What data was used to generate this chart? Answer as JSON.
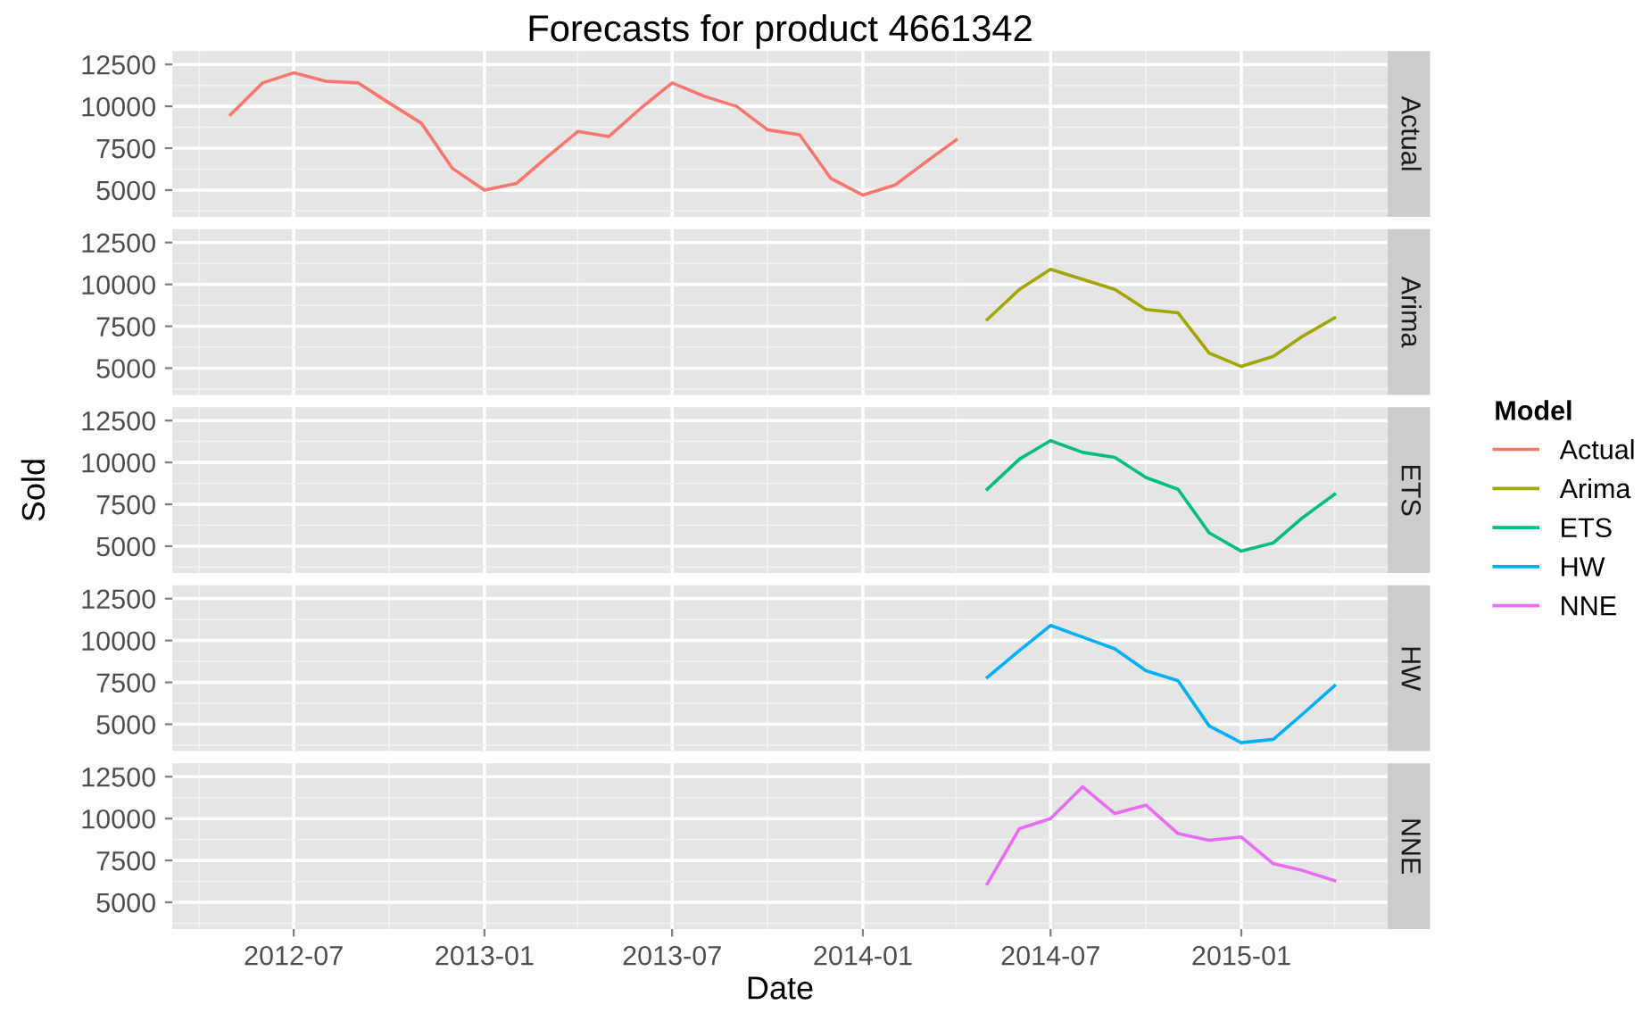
{
  "chart_data": [
    {
      "type": "line",
      "title": "Forecasts for product 4661342",
      "legend": "right",
      "legend_title": "Model",
      "grid": true,
      "tick_labels": "y",
      "xlim": [
        "2012-03-06",
        "2015-05-22"
      ],
      "ylim": [
        3400,
        13300
      ],
      "yticks": [
        {
          "value": 3750,
          "label": null
        },
        5000,
        {
          "value": 6250,
          "label": null
        },
        7500,
        {
          "value": 8750,
          "label": null
        },
        10000,
        {
          "value": 11250,
          "label": null
        },
        12500
      ],
      "x": [
        "2012-05",
        "2012-06",
        "2012-07",
        "2012-08",
        "2012-09",
        "2012-10",
        "2012-11",
        "2012-12",
        "2013-01",
        "2013-02",
        "2013-03",
        "2013-04",
        "2013-05",
        "2013-06",
        "2013-07",
        "2013-08",
        "2013-09",
        "2013-10",
        "2013-11",
        "2013-12",
        "2014-01",
        "2014-02",
        "2014-03",
        "2014-04"
      ],
      "series": [
        {
          "name": "Actual",
          "color": "#f8766d",
          "values": [
            9500,
            11400,
            12000,
            11500,
            11400,
            10200,
            9000,
            6300,
            5000,
            5400,
            6900,
            8500,
            8200,
            9900,
            11400,
            10600,
            10000,
            8600,
            8300,
            5700,
            4700,
            5300,
            6600,
            8000
          ]
        }
      ]
    },
    {
      "type": "line",
      "grid": true,
      "tick_labels": "y",
      "xlim": [
        "2012-03-06",
        "2015-05-22"
      ],
      "ylim": [
        3400,
        13300
      ],
      "yticks": [
        {
          "value": 3750,
          "label": null
        },
        5000,
        {
          "value": 6250,
          "label": null
        },
        7500,
        {
          "value": 8750,
          "label": null
        },
        10000,
        {
          "value": 11250,
          "label": null
        },
        12500
      ],
      "x": [
        "2014-05",
        "2014-06",
        "2014-07",
        "2014-08",
        "2014-09",
        "2014-10",
        "2014-11",
        "2014-12",
        "2015-01",
        "2015-02",
        "2015-03",
        "2015-04"
      ],
      "series": [
        {
          "name": "Arima",
          "color": "#a3a500",
          "values": [
            7900,
            9700,
            10900,
            10300,
            9700,
            8500,
            8300,
            5900,
            5100,
            5700,
            6900,
            8000
          ]
        }
      ]
    },
    {
      "type": "line",
      "ylabel": "Sold",
      "grid": true,
      "tick_labels": "y",
      "xlim": [
        "2012-03-06",
        "2015-05-22"
      ],
      "ylim": [
        3400,
        13300
      ],
      "yticks": [
        {
          "value": 3750,
          "label": null
        },
        5000,
        {
          "value": 6250,
          "label": null
        },
        7500,
        {
          "value": 8750,
          "label": null
        },
        10000,
        {
          "value": 11250,
          "label": null
        },
        12500
      ],
      "x": [
        "2014-05",
        "2014-06",
        "2014-07",
        "2014-08",
        "2014-09",
        "2014-10",
        "2014-11",
        "2014-12",
        "2015-01",
        "2015-02",
        "2015-03",
        "2015-04"
      ],
      "series": [
        {
          "name": "ETS",
          "color": "#00bf7d",
          "values": [
            8400,
            10200,
            11300,
            10600,
            10300,
            9100,
            8400,
            5800,
            4700,
            5200,
            6700,
            8100
          ]
        }
      ]
    },
    {
      "type": "line",
      "grid": true,
      "tick_labels": "y",
      "xlim": [
        "2012-03-06",
        "2015-05-22"
      ],
      "ylim": [
        3400,
        13300
      ],
      "yticks": [
        {
          "value": 3750,
          "label": null
        },
        5000,
        {
          "value": 6250,
          "label": null
        },
        7500,
        {
          "value": 8750,
          "label": null
        },
        10000,
        {
          "value": 11250,
          "label": null
        },
        12500
      ],
      "x": [
        "2014-05",
        "2014-06",
        "2014-07",
        "2014-08",
        "2014-09",
        "2014-10",
        "2014-11",
        "2014-12",
        "2015-01",
        "2015-02",
        "2015-03",
        "2015-04"
      ],
      "series": [
        {
          "name": "HW",
          "color": "#00b0f6",
          "values": [
            7800,
            9400,
            10900,
            10200,
            9500,
            8200,
            7600,
            4900,
            3900,
            4100,
            5600,
            7300
          ]
        }
      ]
    },
    {
      "type": "line",
      "xlabel": "Date",
      "grid": true,
      "xlim": [
        "2012-03-06",
        "2015-05-22"
      ],
      "ylim": [
        3400,
        13300
      ],
      "xticks": [
        {
          "value": "2012-04",
          "label": null
        },
        {
          "value": "2012-07",
          "label": "2012-07"
        },
        {
          "value": "2012-10",
          "label": null
        },
        {
          "value": "2013-01",
          "label": "2013-01"
        },
        {
          "value": "2013-04",
          "label": null
        },
        {
          "value": "2013-07",
          "label": "2013-07"
        },
        {
          "value": "2013-10",
          "label": null
        },
        {
          "value": "2014-01",
          "label": "2014-01"
        },
        {
          "value": "2014-04",
          "label": null
        },
        {
          "value": "2014-07",
          "label": "2014-07"
        },
        {
          "value": "2014-10",
          "label": null
        },
        {
          "value": "2015-01",
          "label": "2015-01"
        },
        {
          "value": "2015-04",
          "label": null
        }
      ],
      "yticks": [
        {
          "value": 3750,
          "label": null
        },
        5000,
        {
          "value": 6250,
          "label": null
        },
        7500,
        {
          "value": 8750,
          "label": null
        },
        10000,
        {
          "value": 11250,
          "label": null
        },
        12500
      ],
      "x": [
        "2014-05",
        "2014-06",
        "2014-07",
        "2014-08",
        "2014-09",
        "2014-10",
        "2014-11",
        "2014-12",
        "2015-01",
        "2015-02",
        "2015-03",
        "2015-04"
      ],
      "series": [
        {
          "name": "NNE",
          "color": "#e76bf3",
          "values": [
            6100,
            9400,
            10000,
            11900,
            10300,
            10800,
            9100,
            8700,
            8900,
            7300,
            6900,
            6300
          ]
        }
      ]
    }
  ]
}
